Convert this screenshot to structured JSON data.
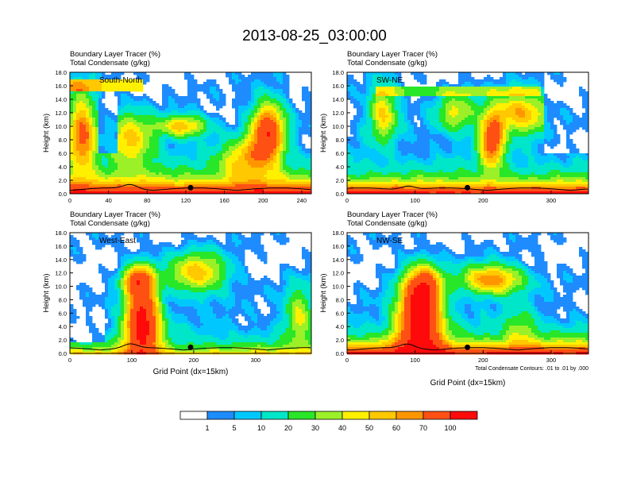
{
  "title": "2013-08-25_03:00:00",
  "chart_data": [
    {
      "type": "heatmap",
      "field_label": "Boundary Layer Tracer",
      "field_unit": "(%)",
      "contour_label": "Total Condensate",
      "contour_unit": "(g/kg)",
      "panel_label": "South-North",
      "xlabel": "",
      "ylabel": "Height (km)",
      "xlim": [
        0,
        250
      ],
      "ylim": [
        0,
        18
      ],
      "xticks": [
        "0",
        "40",
        "80",
        "120",
        "160",
        "200",
        "240"
      ],
      "yticks": [
        "0.0",
        "2.0",
        "4.0",
        "6.0",
        "8.0",
        "10.0",
        "12.0",
        "14.0",
        "16.0",
        "18.0"
      ],
      "surface_marker_x": 125
    },
    {
      "type": "heatmap",
      "field_label": "Boundary Layer Tracer",
      "field_unit": "(%)",
      "contour_label": "Total Condensate",
      "contour_unit": "(g/kg)",
      "panel_label": "SW-NE",
      "xlabel": "",
      "ylabel": "Height (km)",
      "xlim": [
        0,
        355
      ],
      "ylim": [
        0,
        18
      ],
      "xticks": [
        "0",
        "100",
        "200",
        "300"
      ],
      "yticks": [
        "0.0",
        "2.0",
        "4.0",
        "6.0",
        "8.0",
        "10.0",
        "12.0",
        "14.0",
        "16.0",
        "18.0"
      ],
      "surface_marker_x": 177
    },
    {
      "type": "heatmap",
      "field_label": "Boundary Layer Tracer",
      "field_unit": "(%)",
      "contour_label": "Total Condensate",
      "contour_unit": "(g/kg)",
      "panel_label": "West-East",
      "xlabel": "Grid Point (dx=15km)",
      "ylabel": "Height (km)",
      "xlim": [
        0,
        390
      ],
      "ylim": [
        0,
        18
      ],
      "xticks": [
        "0",
        "100",
        "200",
        "300"
      ],
      "yticks": [
        "0.0",
        "2.0",
        "4.0",
        "6.0",
        "8.0",
        "10.0",
        "12.0",
        "14.0",
        "16.0",
        "18.0"
      ],
      "surface_marker_x": 195
    },
    {
      "type": "heatmap",
      "field_label": "Boundary Layer Tracer",
      "field_unit": "(%)",
      "contour_label": "Total Condensate",
      "contour_unit": "(g/kg)",
      "panel_label": "NW-SE",
      "xlabel": "Grid Point (dx=15km)",
      "ylabel": "Height (km)",
      "xlim": [
        0,
        355
      ],
      "ylim": [
        0,
        18
      ],
      "xticks": [
        "0",
        "100",
        "200",
        "300"
      ],
      "yticks": [
        "0.0",
        "2.0",
        "4.0",
        "6.0",
        "8.0",
        "10.0",
        "12.0",
        "14.0",
        "16.0",
        "18.0"
      ],
      "surface_marker_x": 177,
      "note": "Total Condensate Contours: .01 to .01 by .000"
    }
  ],
  "colorbar": {
    "labels": [
      "1",
      "5",
      "10",
      "20",
      "30",
      "40",
      "50",
      "60",
      "70",
      "100"
    ],
    "colors": [
      "#ffffff",
      "#1e8cff",
      "#00c8ff",
      "#00e6c8",
      "#28e628",
      "#9bf028",
      "#fff000",
      "#ffc800",
      "#ff9600",
      "#ff5014",
      "#ff0a0a"
    ]
  }
}
